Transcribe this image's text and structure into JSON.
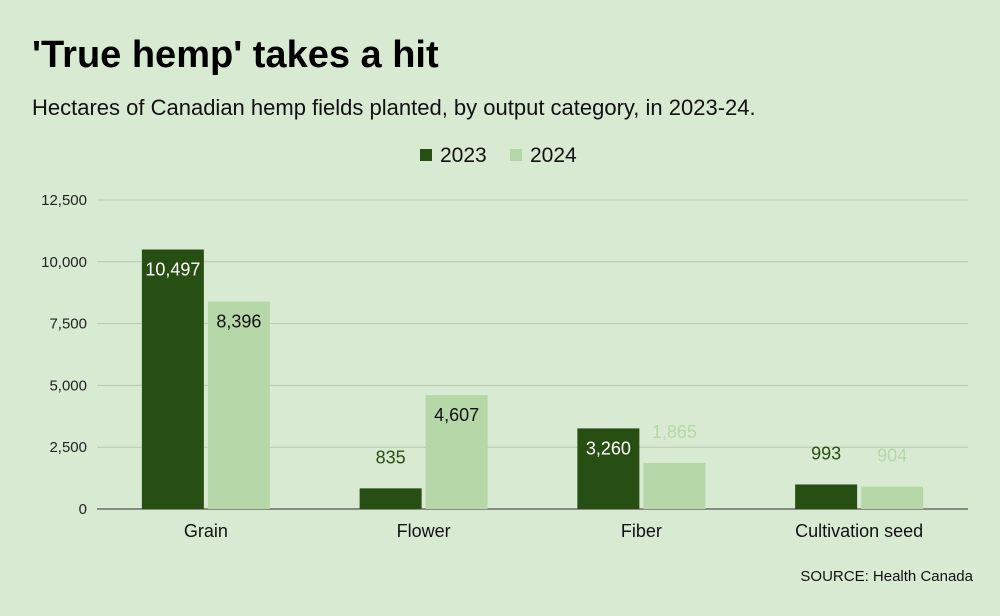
{
  "title": "'True hemp' takes a hit",
  "subtitle": "Hectares of Canadian hemp fields planted, by output category, in 2023-24.",
  "source": "SOURCE: Health Canada",
  "colors": {
    "background": "#d9ead3",
    "series_2023": "#274e13",
    "series_2024": "#b6d7a8",
    "grid": "#b7c9b0",
    "axis": "#555555"
  },
  "chart_data": {
    "type": "bar",
    "title": "'True hemp' takes a hit",
    "subtitle": "Hectares of Canadian hemp fields planted, by output category, in 2023-24.",
    "xlabel": "",
    "ylabel": "",
    "categories": [
      "Grain",
      "Flower",
      "Fiber",
      "Cultivation seed"
    ],
    "series": [
      {
        "name": "2023",
        "color": "#274e13",
        "values": [
          10497,
          835,
          3260,
          993
        ],
        "labels": [
          "10,497",
          "835",
          "3,260",
          "993"
        ]
      },
      {
        "name": "2024",
        "color": "#b6d7a8",
        "values": [
          8396,
          4607,
          1865,
          904
        ],
        "labels": [
          "8,396",
          "4,607",
          "1,865",
          "904"
        ]
      }
    ],
    "ylim": [
      0,
      12500
    ],
    "yticks": [
      0,
      2500,
      5000,
      7500,
      10000,
      12500
    ],
    "ytick_labels": [
      "0",
      "2,500",
      "5,000",
      "7,500",
      "10,000",
      "12,500"
    ],
    "grid": true,
    "legend": "top-center"
  }
}
